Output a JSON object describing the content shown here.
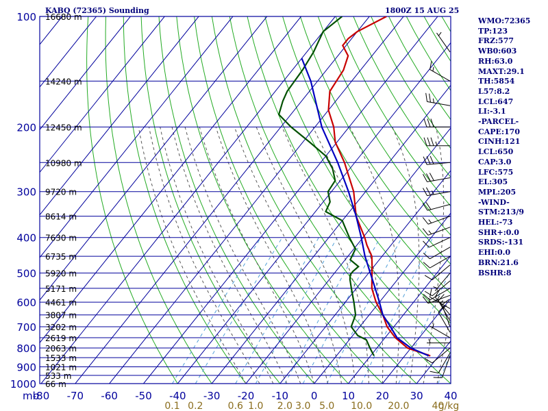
{
  "header": {
    "station": "KABQ (72365) Sounding",
    "time": "1800Z 15 AUG 25"
  },
  "stats": [
    "WMO:72365",
    "TP:123",
    "FRZ:577",
    "WB0:603",
    "RH:63.0",
    "MAXT:29.1",
    "TH:5854",
    "L57:8.2",
    "LCL:647",
    "LI:-3.1",
    "-PARCEL-",
    "CAPE:170",
    "CINH:121",
    "LCL:650",
    "CAP:3.0",
    "LFC:575",
    "EL:305",
    "MPL:205",
    "-WIND-",
    "STM:213/9",
    "HEL:-73",
    "SHR+:0.0",
    "SRDS:-131",
    "EHI:0.0",
    "BRN:21.6",
    "BSHR:8"
  ],
  "colors": {
    "grid": "#00009c",
    "dry_adiabat": "#22aa22",
    "moist_adiabat": "#555555",
    "mixing_ratio": "#4f9fd8",
    "temperature": "#c80000",
    "dewpoint": "#005000",
    "parcel": "#0000c0",
    "axis_text": "#00009c",
    "mixing_text": "#8a6d1d",
    "barbs": "#000000",
    "height_labels": "#000000"
  },
  "chart_data": {
    "type": "line",
    "title": "",
    "x_axis": {
      "unit_label": "mb",
      "ticks": [
        -80,
        -70,
        -60,
        -50,
        -40,
        -30,
        -20,
        -10,
        0,
        10,
        20,
        30,
        40
      ],
      "range": [
        -80,
        40
      ]
    },
    "y_axis": {
      "scale": "log-pressure",
      "ticks": [
        100,
        200,
        300,
        400,
        500,
        600,
        700,
        800,
        900,
        1000
      ],
      "range": [
        100,
        1000
      ]
    },
    "pressure_gridlines": [
      100,
      150,
      200,
      250,
      300,
      350,
      400,
      450,
      500,
      550,
      600,
      650,
      700,
      750,
      800,
      850,
      900,
      950,
      1000
    ],
    "height_labels": [
      {
        "p": 100,
        "text": "16680 m"
      },
      {
        "p": 150,
        "text": "14240 m"
      },
      {
        "p": 200,
        "text": "12450 m"
      },
      {
        "p": 250,
        "text": "10980 m"
      },
      {
        "p": 300,
        "text": "9720 m"
      },
      {
        "p": 350,
        "text": "8614 m"
      },
      {
        "p": 400,
        "text": "7630 m"
      },
      {
        "p": 450,
        "text": "6735 m"
      },
      {
        "p": 500,
        "text": "5920 m"
      },
      {
        "p": 550,
        "text": "5171 m"
      },
      {
        "p": 600,
        "text": "4461 m"
      },
      {
        "p": 650,
        "text": "3807 m"
      },
      {
        "p": 700,
        "text": "3202 m"
      },
      {
        "p": 750,
        "text": "2619 m"
      },
      {
        "p": 800,
        "text": "2063 m"
      },
      {
        "p": 850,
        "text": "1533 m"
      },
      {
        "p": 900,
        "text": "1021 m"
      },
      {
        "p": 950,
        "text": "533 m"
      },
      {
        "p": 1000,
        "text": "66 m"
      }
    ],
    "mixing_ratio_labels": [
      "0.1",
      "0.2",
      "0.6",
      "1.0",
      "2.0",
      "3.0",
      "5.0",
      "10.0",
      "20.0",
      "40",
      "g/kg"
    ],
    "mixing_ratio_values": [
      0.1,
      0.2,
      0.6,
      1.0,
      2.0,
      3.0,
      5.0,
      10.0,
      20.0,
      40.0
    ],
    "series": [
      {
        "name": "",
        "kind": "temperature",
        "points": [
          [
            840,
            27.5
          ],
          [
            800,
            19.0
          ],
          [
            750,
            13.0
          ],
          [
            700,
            8.0
          ],
          [
            650,
            4.0
          ],
          [
            600,
            -1.0
          ],
          [
            550,
            -5.5
          ],
          [
            500,
            -9.0
          ],
          [
            480,
            -10.5
          ],
          [
            450,
            -13.0
          ],
          [
            420,
            -17.0
          ],
          [
            400,
            -19.5
          ],
          [
            350,
            -27.0
          ],
          [
            300,
            -33.5
          ],
          [
            250,
            -43.0
          ],
          [
            220,
            -50.5
          ],
          [
            200,
            -54.5
          ],
          [
            180,
            -60.0
          ],
          [
            160,
            -64.0
          ],
          [
            140,
            -65.0
          ],
          [
            128,
            -67.0
          ],
          [
            120,
            -71.0
          ],
          [
            115,
            -71.0
          ],
          [
            110,
            -70.0
          ],
          [
            100,
            -65.0
          ]
        ]
      },
      {
        "name": "",
        "kind": "dewpoint",
        "points": [
          [
            840,
            11.0
          ],
          [
            800,
            8.0
          ],
          [
            760,
            5.0
          ],
          [
            740,
            1.5
          ],
          [
            700,
            -2.5
          ],
          [
            650,
            -4.0
          ],
          [
            600,
            -7.5
          ],
          [
            550,
            -11.5
          ],
          [
            520,
            -14.0
          ],
          [
            505,
            -15.0
          ],
          [
            495,
            -15.0
          ],
          [
            480,
            -14.5
          ],
          [
            460,
            -18.5
          ],
          [
            430,
            -19.5
          ],
          [
            400,
            -24.0
          ],
          [
            360,
            -30.0
          ],
          [
            340,
            -37.0
          ],
          [
            320,
            -38.0
          ],
          [
            300,
            -41.0
          ],
          [
            280,
            -41.5
          ],
          [
            260,
            -45.0
          ],
          [
            240,
            -50.0
          ],
          [
            220,
            -58.0
          ],
          [
            200,
            -67.0
          ],
          [
            185,
            -73.5
          ],
          [
            170,
            -75.5
          ],
          [
            160,
            -76.5
          ],
          [
            140,
            -77.0
          ],
          [
            125,
            -78.0
          ],
          [
            110,
            -80.0
          ],
          [
            100,
            -78.0
          ]
        ]
      },
      {
        "name": "",
        "kind": "parcel",
        "points": [
          [
            840,
            27.0
          ],
          [
            800,
            20.0
          ],
          [
            750,
            13.5
          ],
          [
            700,
            9.0
          ],
          [
            650,
            4.0
          ],
          [
            600,
            0.0
          ],
          [
            550,
            -4.5
          ],
          [
            500,
            -9.5
          ],
          [
            450,
            -15.0
          ],
          [
            400,
            -20.5
          ],
          [
            350,
            -27.0
          ],
          [
            300,
            -35.0
          ],
          [
            250,
            -45.0
          ],
          [
            200,
            -58.0
          ],
          [
            150,
            -72.0
          ],
          [
            130,
            -80.0
          ]
        ]
      }
    ],
    "wind_barbs": [
      {
        "p": 125,
        "dir": 325,
        "spd": 5
      },
      {
        "p": 150,
        "dir": 300,
        "spd": 15
      },
      {
        "p": 175,
        "dir": 280,
        "spd": 25
      },
      {
        "p": 200,
        "dir": 270,
        "spd": 30
      },
      {
        "p": 225,
        "dir": 270,
        "spd": 35
      },
      {
        "p": 250,
        "dir": 265,
        "spd": 30
      },
      {
        "p": 275,
        "dir": 260,
        "spd": 30
      },
      {
        "p": 300,
        "dir": 260,
        "spd": 25
      },
      {
        "p": 325,
        "dir": 255,
        "spd": 20
      },
      {
        "p": 350,
        "dir": 250,
        "spd": 15
      },
      {
        "p": 375,
        "dir": 250,
        "spd": 15
      },
      {
        "p": 400,
        "dir": 245,
        "spd": 10
      },
      {
        "p": 425,
        "dir": 240,
        "spd": 10
      },
      {
        "p": 450,
        "dir": 240,
        "spd": 10
      },
      {
        "p": 475,
        "dir": 230,
        "spd": 10
      },
      {
        "p": 500,
        "dir": 220,
        "spd": 5
      },
      {
        "p": 525,
        "dir": 230,
        "spd": 10
      },
      {
        "p": 550,
        "dir": 240,
        "spd": 10
      },
      {
        "p": 575,
        "dir": 250,
        "spd": 10
      },
      {
        "p": 600,
        "dir": 270,
        "spd": 5
      },
      {
        "p": 625,
        "dir": 300,
        "spd": 10
      },
      {
        "p": 650,
        "dir": 320,
        "spd": 15
      },
      {
        "p": 675,
        "dir": 330,
        "spd": 15
      },
      {
        "p": 700,
        "dir": 340,
        "spd": 15
      },
      {
        "p": 725,
        "dir": 330,
        "spd": 10
      },
      {
        "p": 750,
        "dir": 300,
        "spd": 5
      },
      {
        "p": 775,
        "dir": 270,
        "spd": 5
      },
      {
        "p": 800,
        "dir": 230,
        "spd": 10
      },
      {
        "p": 825,
        "dir": 210,
        "spd": 10
      },
      {
        "p": 840,
        "dir": 200,
        "spd": 10
      }
    ]
  }
}
